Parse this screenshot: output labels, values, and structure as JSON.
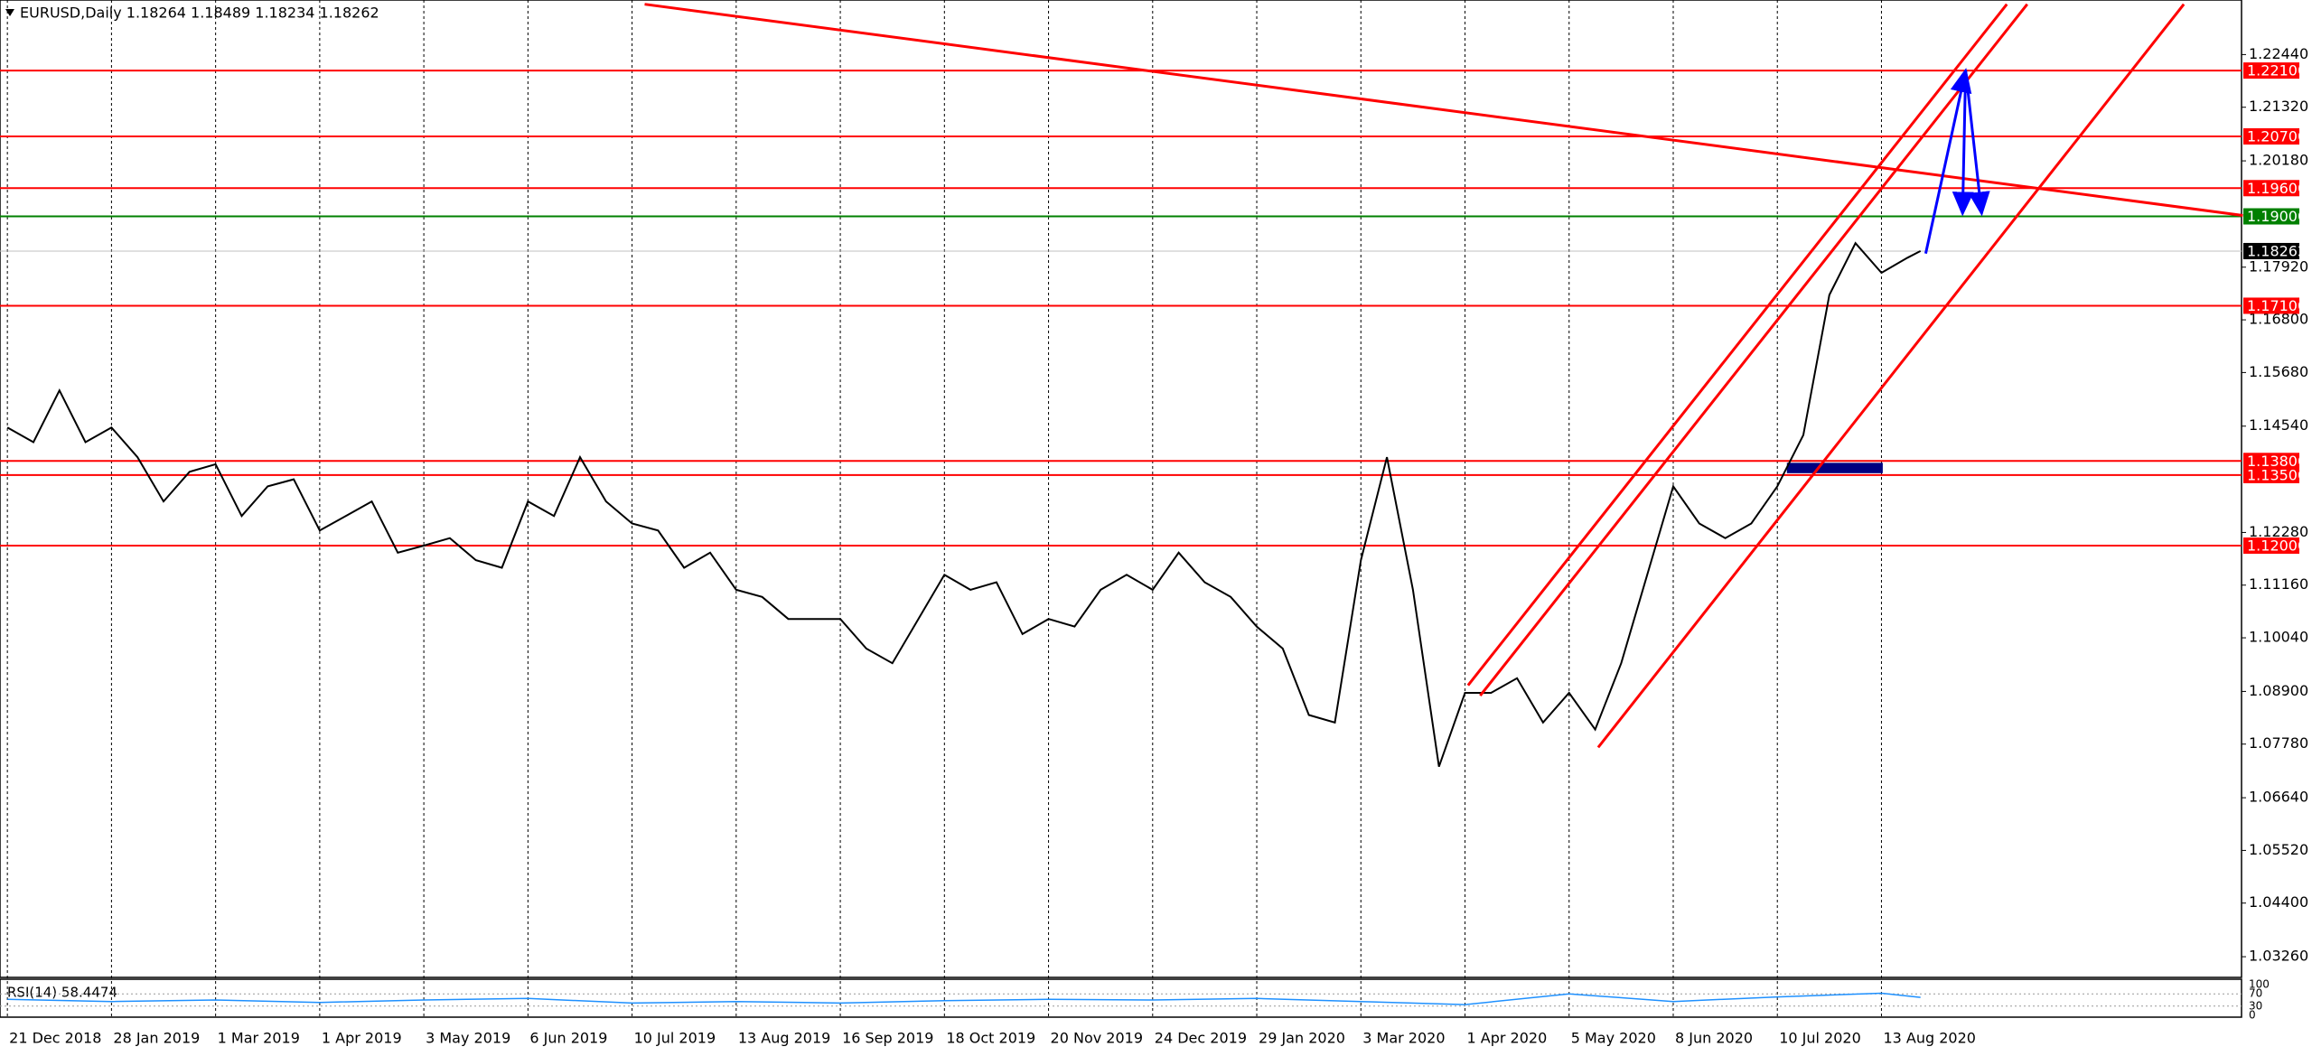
{
  "chart_data": {
    "type": "line",
    "title": "EURUSD,Daily  1.18264 1.18489 1.18234 1.18262",
    "xlim": [
      -1.7,
      515
    ],
    "ylim": [
      1.0282,
      1.236
    ],
    "xticks": [
      {
        "value": 0,
        "label": "21 Dec 2018"
      },
      {
        "value": 24,
        "label": "28 Jan 2019"
      },
      {
        "value": 48,
        "label": "1 Mar 2019"
      },
      {
        "value": 72,
        "label": "1 Apr 2019"
      },
      {
        "value": 96,
        "label": "3 May 2019"
      },
      {
        "value": 120,
        "label": "6 Jun 2019"
      },
      {
        "value": 144,
        "label": "10 Jul 2019"
      },
      {
        "value": 168,
        "label": "13 Aug 2019"
      },
      {
        "value": 192,
        "label": "16 Sep 2019"
      },
      {
        "value": 216,
        "label": "18 Oct 2019"
      },
      {
        "value": 240,
        "label": "20 Nov 2019"
      },
      {
        "value": 264,
        "label": "24 Dec 2019"
      },
      {
        "value": 288,
        "label": "29 Jan 2020"
      },
      {
        "value": 312,
        "label": "3 Mar 2020"
      },
      {
        "value": 336,
        "label": "1 Apr 2020"
      },
      {
        "value": 360,
        "label": "5 May 2020"
      },
      {
        "value": 384,
        "label": "8 Jun 2020"
      },
      {
        "value": 408,
        "label": "10 Jul 2020"
      },
      {
        "value": 432,
        "label": "13 Aug 2020"
      }
    ],
    "yticks": [
      {
        "value": 1.2244,
        "label": "1.22440"
      },
      {
        "value": 1.2132,
        "label": "1.21320"
      },
      {
        "value": 1.2018,
        "label": "1.20180"
      },
      {
        "value": 1.1792,
        "label": "1.17920"
      },
      {
        "value": 1.168,
        "label": "1.16800"
      },
      {
        "value": 1.1568,
        "label": "1.15680"
      },
      {
        "value": 1.1454,
        "label": "1.14540"
      },
      {
        "value": 1.1228,
        "label": "1.12280"
      },
      {
        "value": 1.1116,
        "label": "1.11160"
      },
      {
        "value": 1.1004,
        "label": "1.10040"
      },
      {
        "value": 1.089,
        "label": "1.08900"
      },
      {
        "value": 1.0778,
        "label": "1.07780"
      },
      {
        "value": 1.0664,
        "label": "1.06640"
      },
      {
        "value": 1.0552,
        "label": "1.05520"
      },
      {
        "value": 1.044,
        "label": "1.04400"
      },
      {
        "value": 1.0326,
        "label": "1.03260"
      }
    ],
    "series": [
      {
        "name": "EURUSD",
        "color": "#000000",
        "x": [
          0,
          6,
          12,
          18,
          24,
          30,
          36,
          42,
          48,
          54,
          60,
          66,
          72,
          78,
          84,
          90,
          96,
          102,
          108,
          114,
          120,
          126,
          132,
          138,
          144,
          150,
          156,
          162,
          168,
          174,
          180,
          186,
          192,
          198,
          204,
          210,
          216,
          222,
          228,
          234,
          240,
          246,
          252,
          258,
          264,
          270,
          276,
          282,
          288,
          294,
          300,
          306,
          312,
          318,
          324,
          330,
          336,
          342,
          348,
          354,
          360,
          366,
          372,
          378,
          384,
          390,
          396,
          402,
          408,
          414,
          420,
          426,
          432,
          438,
          441
        ],
        "values": [
          1.1451,
          1.142,
          1.153,
          1.142,
          1.1451,
          1.1388,
          1.1294,
          1.1357,
          1.1373,
          1.1263,
          1.1326,
          1.1341,
          1.1232,
          1.1263,
          1.1294,
          1.1185,
          1.12,
          1.1216,
          1.1169,
          1.1153,
          1.1294,
          1.1263,
          1.1388,
          1.1294,
          1.1247,
          1.1232,
          1.1153,
          1.1185,
          1.1106,
          1.1091,
          1.1044,
          1.1044,
          1.1044,
          1.0981,
          1.095,
          1.1044,
          1.1138,
          1.1106,
          1.1122,
          1.1012,
          1.1044,
          1.1028,
          1.1106,
          1.1138,
          1.1106,
          1.1185,
          1.1122,
          1.1091,
          1.1028,
          1.0981,
          1.084,
          1.0824,
          1.1169,
          1.1388,
          1.1106,
          1.073,
          1.0887,
          1.0887,
          1.0918,
          1.0824,
          1.0887,
          1.0809,
          1.095,
          1.1138,
          1.1326,
          1.1247,
          1.1216,
          1.1247,
          1.1326,
          1.1435,
          1.1733,
          1.1843,
          1.178,
          1.1812,
          1.18262
        ]
      }
    ],
    "levels": [
      {
        "value": 1.221,
        "label": "1.22100",
        "color": "#ff0000"
      },
      {
        "value": 1.207,
        "label": "1.20700",
        "color": "#ff0000"
      },
      {
        "value": 1.196,
        "label": "1.19600",
        "color": "#ff0000"
      },
      {
        "value": 1.19,
        "label": "1.19000",
        "color": "#008000"
      },
      {
        "value": 1.171,
        "label": "1.17100",
        "color": "#ff0000"
      },
      {
        "value": 1.138,
        "label": "1.13800",
        "color": "#ff0000"
      },
      {
        "value": 1.135,
        "label": "1.13500",
        "color": "#ff0000"
      },
      {
        "value": 1.12,
        "label": "1.12000",
        "color": "#ff0000"
      }
    ],
    "current_price": {
      "value": 1.18262,
      "label": "1.18262"
    },
    "trendlines": [
      {
        "color": "#ff0000",
        "x": [
          146.9,
          515.3
        ],
        "y": [
          1.2351,
          1.1902
        ]
      },
      {
        "color": "#ff0000",
        "x": [
          336.7,
          460.9
        ],
        "y": [
          1.0903,
          1.2351
        ]
      },
      {
        "color": "#ff0000",
        "x": [
          339.5,
          465.6
        ],
        "y": [
          1.0881,
          1.2351
        ]
      },
      {
        "color": "#ff0000",
        "x": [
          366.7,
          501.7
        ],
        "y": [
          1.0771,
          1.2351
        ]
      }
    ],
    "arrows": [
      {
        "color": "#0000ff",
        "x": [
          442.2,
          451.4
        ],
        "y": [
          1.1821,
          1.221
        ]
      },
      {
        "color": "#0000ff",
        "x": [
          451.4,
          450.7
        ],
        "y": [
          1.221,
          1.1906
        ]
      },
      {
        "color": "#0000ff",
        "x": [
          451.4,
          455.1
        ],
        "y": [
          1.221,
          1.1906
        ]
      }
    ],
    "zone": {
      "color": "#000080",
      "x": [
        410.2,
        432.3
      ],
      "y": [
        1.1354,
        1.1376
      ]
    },
    "rsi": {
      "label": "RSI(14) 58.4474",
      "color": "#1e90ff",
      "ylim": [
        0,
        100
      ],
      "yticks": [
        100,
        70,
        30,
        0
      ],
      "x": [
        0,
        24,
        48,
        72,
        96,
        120,
        144,
        168,
        192,
        216,
        240,
        264,
        288,
        312,
        336,
        360,
        384,
        408,
        432,
        441
      ],
      "values": [
        52,
        45,
        50,
        42,
        50,
        55,
        40,
        45,
        40,
        48,
        52,
        50,
        55,
        45,
        35,
        70,
        45,
        60,
        72,
        58.4474
      ]
    }
  }
}
